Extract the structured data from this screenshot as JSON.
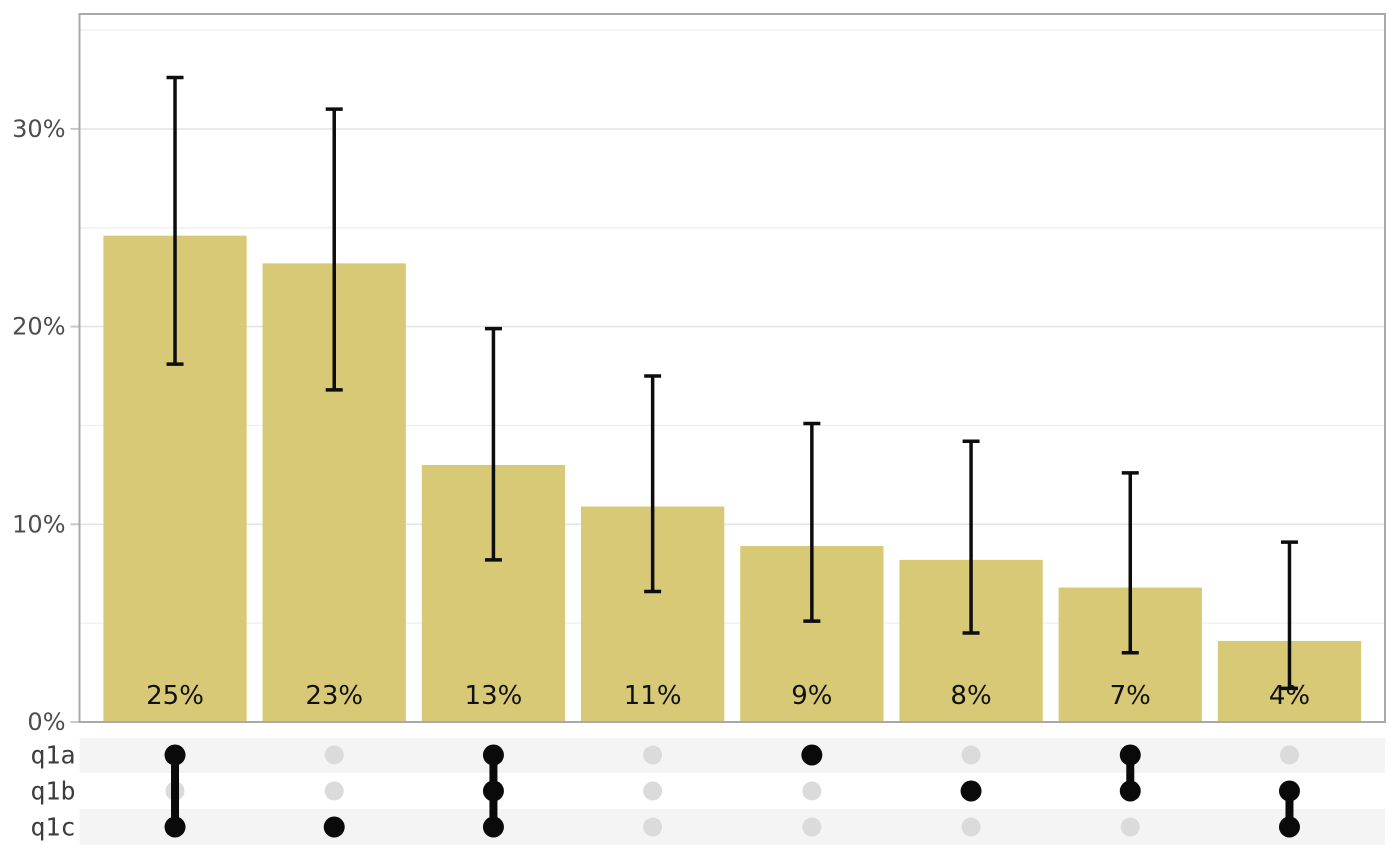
{
  "chart_data": {
    "type": "bar",
    "variant": "upset-plot-with-error-bars",
    "title": "",
    "xlabel": "",
    "ylabel": "",
    "legend": "none",
    "grid": "on",
    "ylim": [
      0,
      35.8
    ],
    "ytick_values": [
      0,
      10,
      20,
      30
    ],
    "ytick_labels": [
      "0%",
      "10%",
      "20%",
      "30%"
    ],
    "grid_interval_pct": 5,
    "categories": [
      "q1a+q1c",
      "q1c",
      "q1a+q1b+q1c",
      "(none)",
      "q1a",
      "q1b",
      "q1a+q1b",
      "q1b+q1c"
    ],
    "values": [
      24.6,
      23.2,
      13.0,
      10.9,
      8.9,
      8.2,
      6.8,
      4.1
    ],
    "bar_labels": [
      "25%",
      "23%",
      "13%",
      "11%",
      "9%",
      "8%",
      "7%",
      "4%"
    ],
    "error_bars": [
      {
        "low": 18.1,
        "high": 32.6
      },
      {
        "low": 16.8,
        "high": 31.0
      },
      {
        "low": 8.2,
        "high": 19.9
      },
      {
        "low": 6.6,
        "high": 17.5
      },
      {
        "low": 5.1,
        "high": 15.1
      },
      {
        "low": 4.5,
        "high": 14.2
      },
      {
        "low": 3.5,
        "high": 12.6
      },
      {
        "low": 1.7,
        "high": 9.1
      }
    ],
    "upset_matrix": {
      "sets": [
        "q1a",
        "q1b",
        "q1c"
      ],
      "membership": [
        [
          1,
          0,
          1
        ],
        [
          0,
          0,
          1
        ],
        [
          1,
          1,
          1
        ],
        [
          0,
          0,
          0
        ],
        [
          1,
          0,
          0
        ],
        [
          0,
          1,
          0
        ],
        [
          1,
          1,
          0
        ],
        [
          0,
          1,
          1
        ]
      ]
    }
  },
  "colors": {
    "bar_fill": "#d8c976",
    "error_bar": "#0d0d0d",
    "bar_label": "#111111",
    "grid_major": "#e4e4e4",
    "grid_minor": "#ededed",
    "panel_border": "#a9a9a9",
    "tick_mark": "#c9c9c9",
    "tick_label": "#4d4d4d",
    "matrix_stripe": "#f4f4f4",
    "matrix_label": "#3d3d3d",
    "dot_active": "#0a0a0a",
    "dot_inactive": "#dbdbdb",
    "background": "#ffffff"
  }
}
